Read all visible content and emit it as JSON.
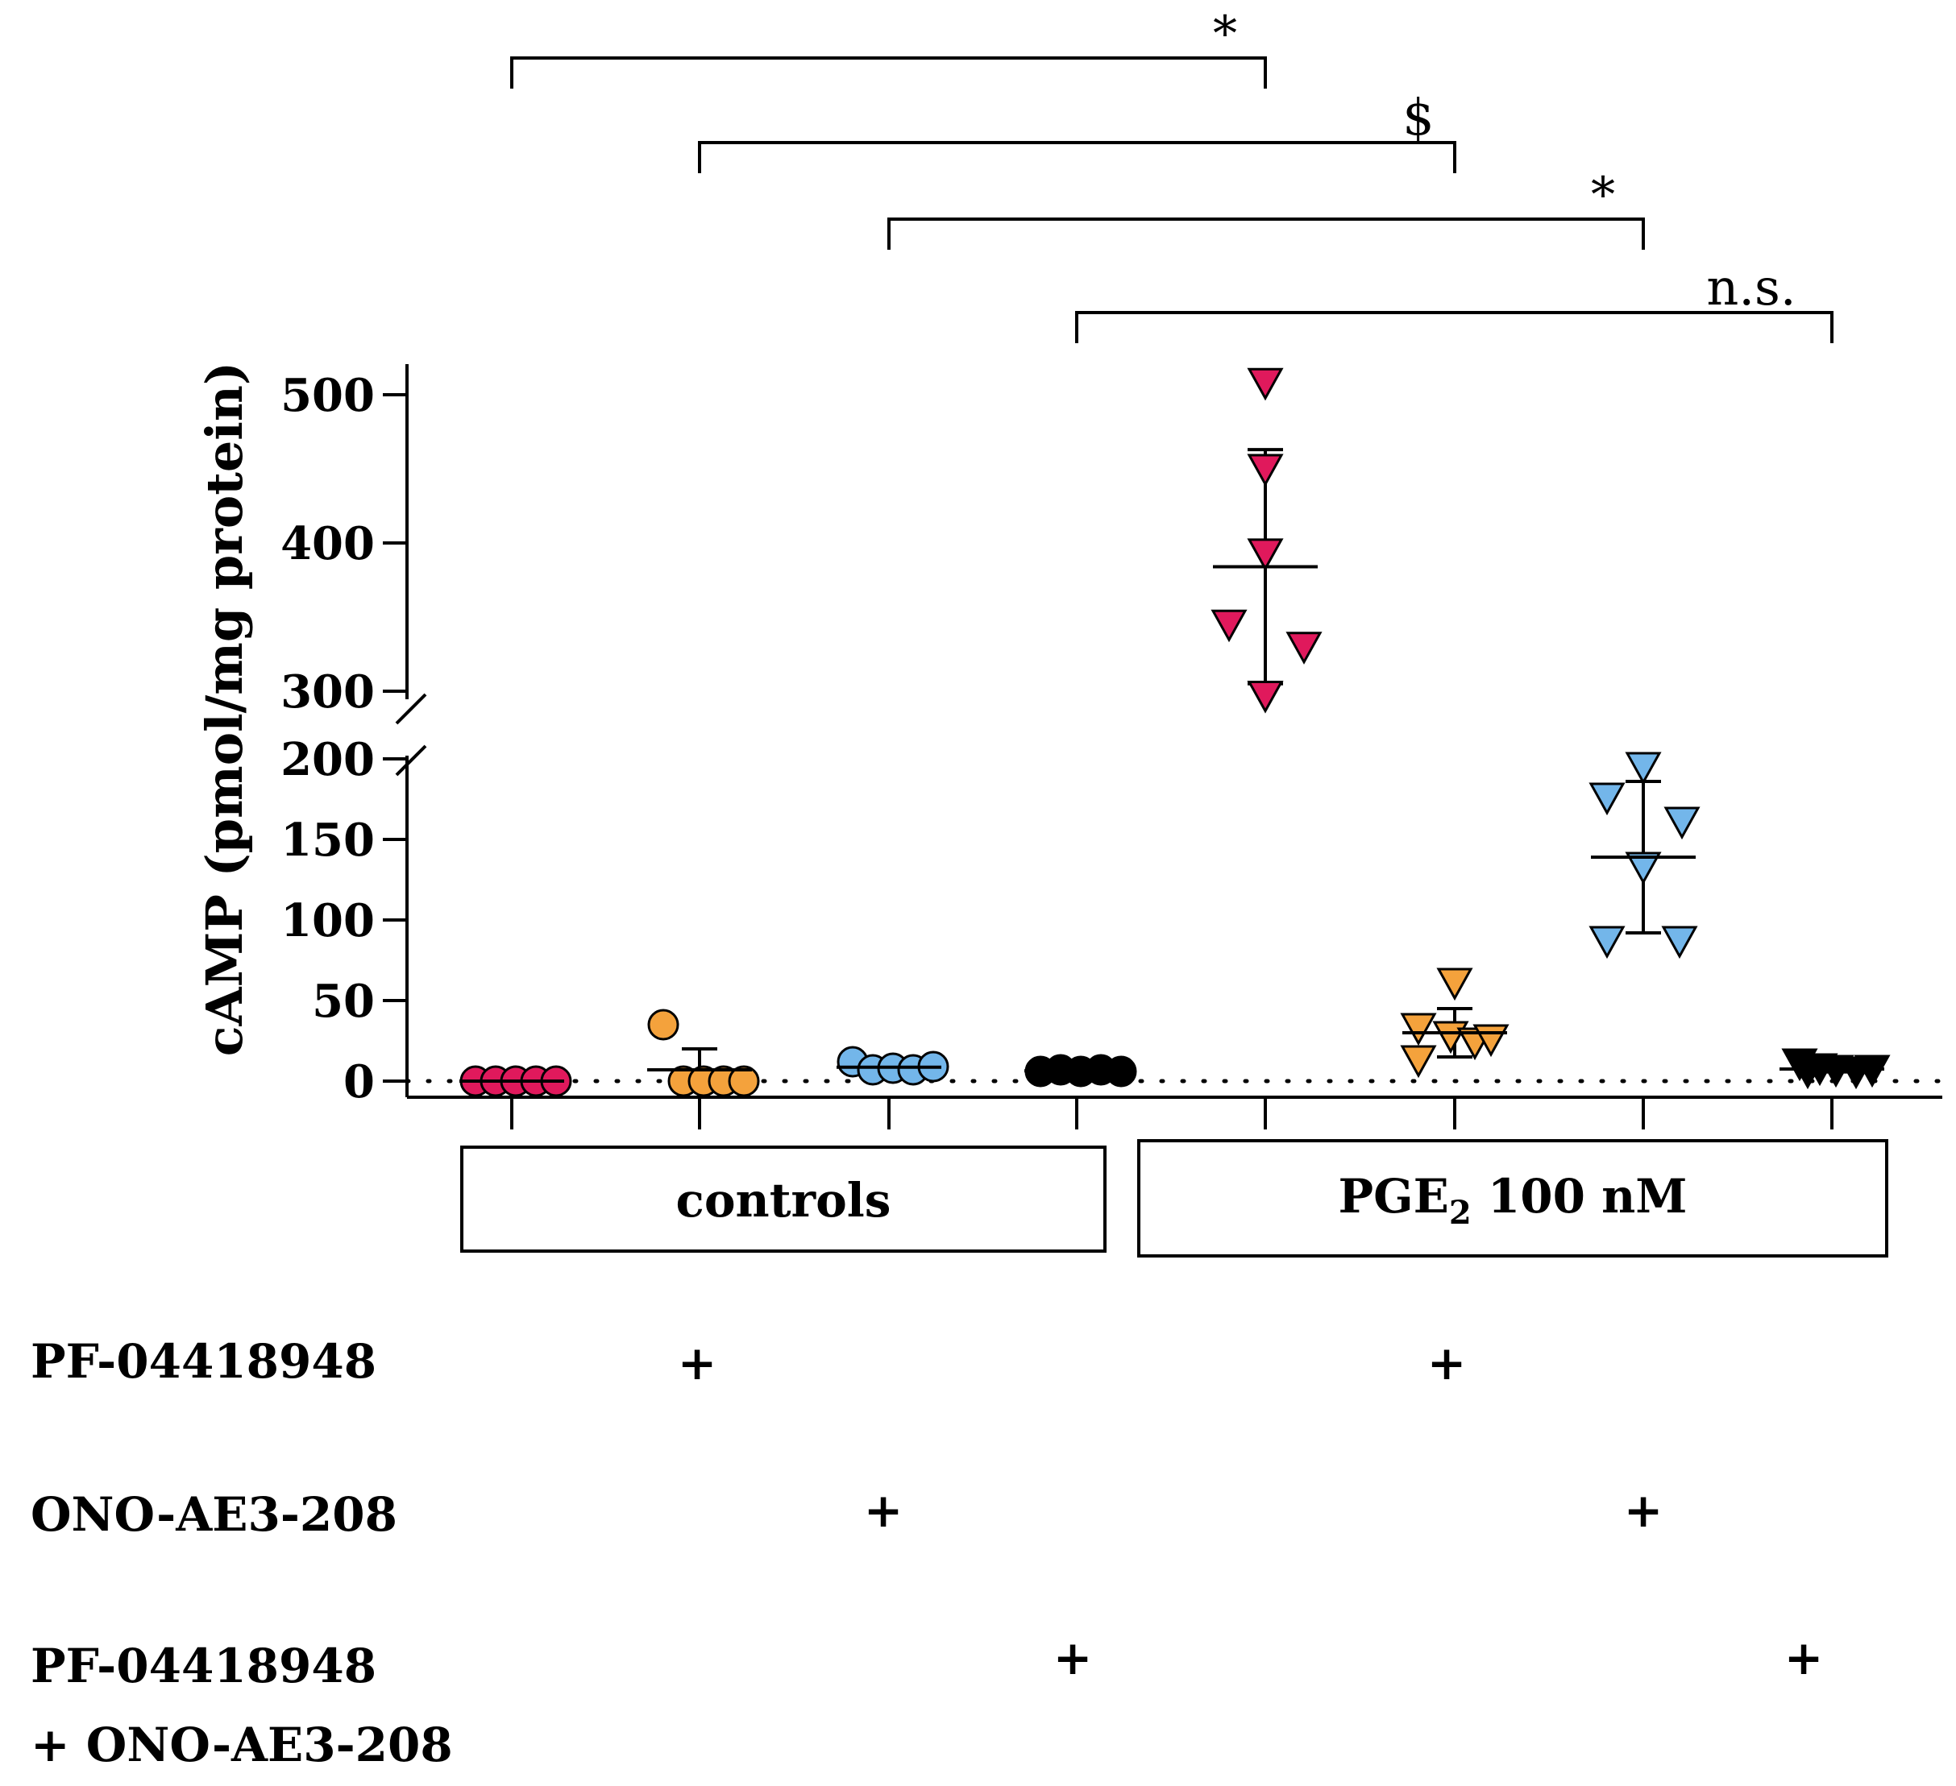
{
  "chart_data": {
    "type": "scatter",
    "ylabel": "cAMP (pmol/mg protein)",
    "axis_break": {
      "lower_range": [
        0,
        200
      ],
      "upper_range": [
        300,
        500
      ]
    },
    "yticks_lower": [
      0,
      50,
      100,
      150,
      200
    ],
    "yticks_upper": [
      300,
      400,
      500
    ],
    "baseline": 0,
    "groups": [
      {
        "name": "controls",
        "treatment": "none",
        "marker": "circle",
        "color": "#e0195c",
        "points": [
          0,
          0,
          0,
          0,
          0
        ],
        "mean": 0,
        "sd": 0
      },
      {
        "name": "controls",
        "treatment": "PF-04418948",
        "marker": "circle",
        "color": "#f4a23c",
        "points": [
          35,
          0,
          0,
          0,
          0
        ],
        "mean": 7,
        "sd": 13
      },
      {
        "name": "controls",
        "treatment": "ONO-AE3-208",
        "marker": "circle",
        "color": "#73b6ea",
        "points": [
          12,
          7,
          8,
          7,
          9
        ],
        "mean": 8.6,
        "sd": 2
      },
      {
        "name": "controls",
        "treatment": "PF-04418948 + ONO-AE3-208",
        "marker": "circle",
        "color": "#000000",
        "points": [
          6,
          7,
          6,
          7,
          6
        ],
        "mean": 6.4,
        "sd": 0.5
      },
      {
        "name": "PGE2 100 nM",
        "treatment": "none",
        "marker": "triangle-down",
        "color": "#e0195c",
        "points": [
          508,
          450,
          393,
          345,
          330,
          297
        ],
        "mean": 384,
        "sd": 79
      },
      {
        "name": "PGE2 100 nM",
        "treatment": "PF-04418948",
        "marker": "triangle-down",
        "color": "#f4a23c",
        "points": [
          61,
          33,
          28,
          24,
          26,
          13
        ],
        "mean": 30,
        "sd": 15
      },
      {
        "name": "PGE2 100 nM",
        "treatment": "ONO-AE3-208",
        "marker": "triangle-down",
        "color": "#73b6ea",
        "points": [
          195,
          176,
          161,
          133,
          87,
          87
        ],
        "mean": 139,
        "sd": 47
      },
      {
        "name": "PGE2 100 nM",
        "treatment": "PF-04418948 + ONO-AE3-208",
        "marker": "triangle-down",
        "color": "#000000",
        "points": [
          11,
          8,
          7,
          6,
          7,
          6
        ],
        "mean": 7.5,
        "sd": 1.8
      }
    ],
    "comparisons": [
      {
        "from_group": 0,
        "to_group": 4,
        "label": "*"
      },
      {
        "from_group": 1,
        "to_group": 5,
        "label": "$"
      },
      {
        "from_group": 2,
        "to_group": 6,
        "label": "*"
      },
      {
        "from_group": 3,
        "to_group": 7,
        "label": "n.s."
      }
    ],
    "group_boxes": [
      {
        "label": "controls",
        "covers": [
          0,
          1,
          2,
          3
        ]
      },
      {
        "label_main": "PGE",
        "label_sub": "2",
        "label_rest": " 100 nM",
        "covers": [
          4,
          5,
          6,
          7
        ]
      }
    ],
    "treatment_rows": [
      {
        "label_lines": [
          "PF-04418948"
        ],
        "plus_groups": [
          1,
          5
        ]
      },
      {
        "label_lines": [
          "ONO-AE3-208"
        ],
        "plus_groups": [
          2,
          6
        ]
      },
      {
        "label_lines": [
          "PF-04418948",
          "+ ONO-AE3-208"
        ],
        "plus_groups": [
          3,
          7
        ]
      }
    ],
    "plus_mark": "+"
  }
}
